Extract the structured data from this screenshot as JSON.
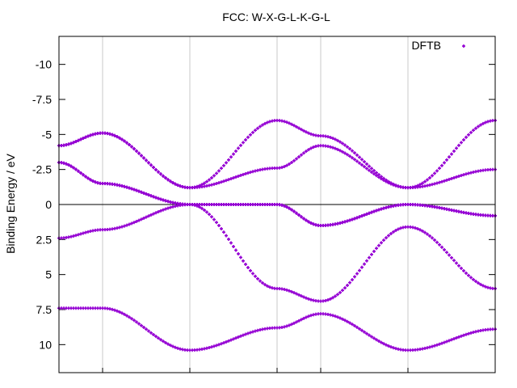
{
  "chart_data": {
    "type": "scatter",
    "title": "FCC: W-X-G-L-K-G-L",
    "xlabel": "",
    "ylabel": "Binding Energy / eV",
    "xlim": [
      0,
      1
    ],
    "ylim": [
      12,
      -12
    ],
    "y_inverted": true,
    "y_ticks": [
      -10,
      -7.5,
      -5,
      -2.5,
      0,
      2.5,
      5,
      7.5,
      10
    ],
    "y_tick_labels": [
      "-10",
      "-7.5",
      "-5",
      "-2.5",
      "0",
      "2.5",
      "5",
      "7.5",
      "10"
    ],
    "x_grid_positions": [
      0.1,
      0.3,
      0.5,
      0.6,
      0.8
    ],
    "x_tick_labels": [],
    "zero_line": 0,
    "grid": true,
    "legend": {
      "position": "top-right",
      "entries": [
        "DFTB"
      ]
    },
    "series": [
      {
        "name": "DFTB",
        "color": "#9400d3",
        "marker": "cross",
        "bands": [
          [
            [
              0,
              7.4
            ],
            [
              0.1,
              7.4
            ],
            [
              0.3,
              10.4
            ],
            [
              0.5,
              8.8
            ],
            [
              0.6,
              7.8
            ],
            [
              0.8,
              10.4
            ],
            [
              1,
              8.9
            ]
          ],
          [
            [
              0,
              2.4
            ],
            [
              0.1,
              1.8
            ],
            [
              0.3,
              0
            ],
            [
              0.5,
              6
            ],
            [
              0.6,
              6.9
            ],
            [
              0.8,
              1.6
            ],
            [
              1,
              6
            ]
          ],
          [
            [
              0,
              -3
            ],
            [
              0.1,
              -1.5
            ],
            [
              0.3,
              0
            ],
            [
              0.5,
              0
            ],
            [
              0.6,
              1.5
            ],
            [
              0.8,
              0
            ],
            [
              1,
              0.8
            ]
          ],
          [
            [
              0,
              -3
            ],
            [
              0.1,
              -1.5
            ],
            [
              0.3,
              0
            ],
            [
              0.5,
              0
            ],
            [
              0.6,
              1.5
            ],
            [
              0.8,
              0
            ],
            [
              1,
              0.8
            ]
          ],
          [
            [
              0,
              -4.2
            ],
            [
              0.1,
              -5.1
            ],
            [
              0.3,
              -1.2
            ],
            [
              0.5,
              -2.6
            ],
            [
              0.6,
              -4.2
            ],
            [
              0.8,
              -1.2
            ],
            [
              1,
              -2.5
            ]
          ],
          [
            [
              0,
              -4.2
            ],
            [
              0.1,
              -5.1
            ],
            [
              0.3,
              -1.2
            ],
            [
              0.5,
              -6
            ],
            [
              0.6,
              -4.9
            ],
            [
              0.8,
              -1.2
            ],
            [
              1,
              -6
            ]
          ]
        ]
      }
    ]
  }
}
